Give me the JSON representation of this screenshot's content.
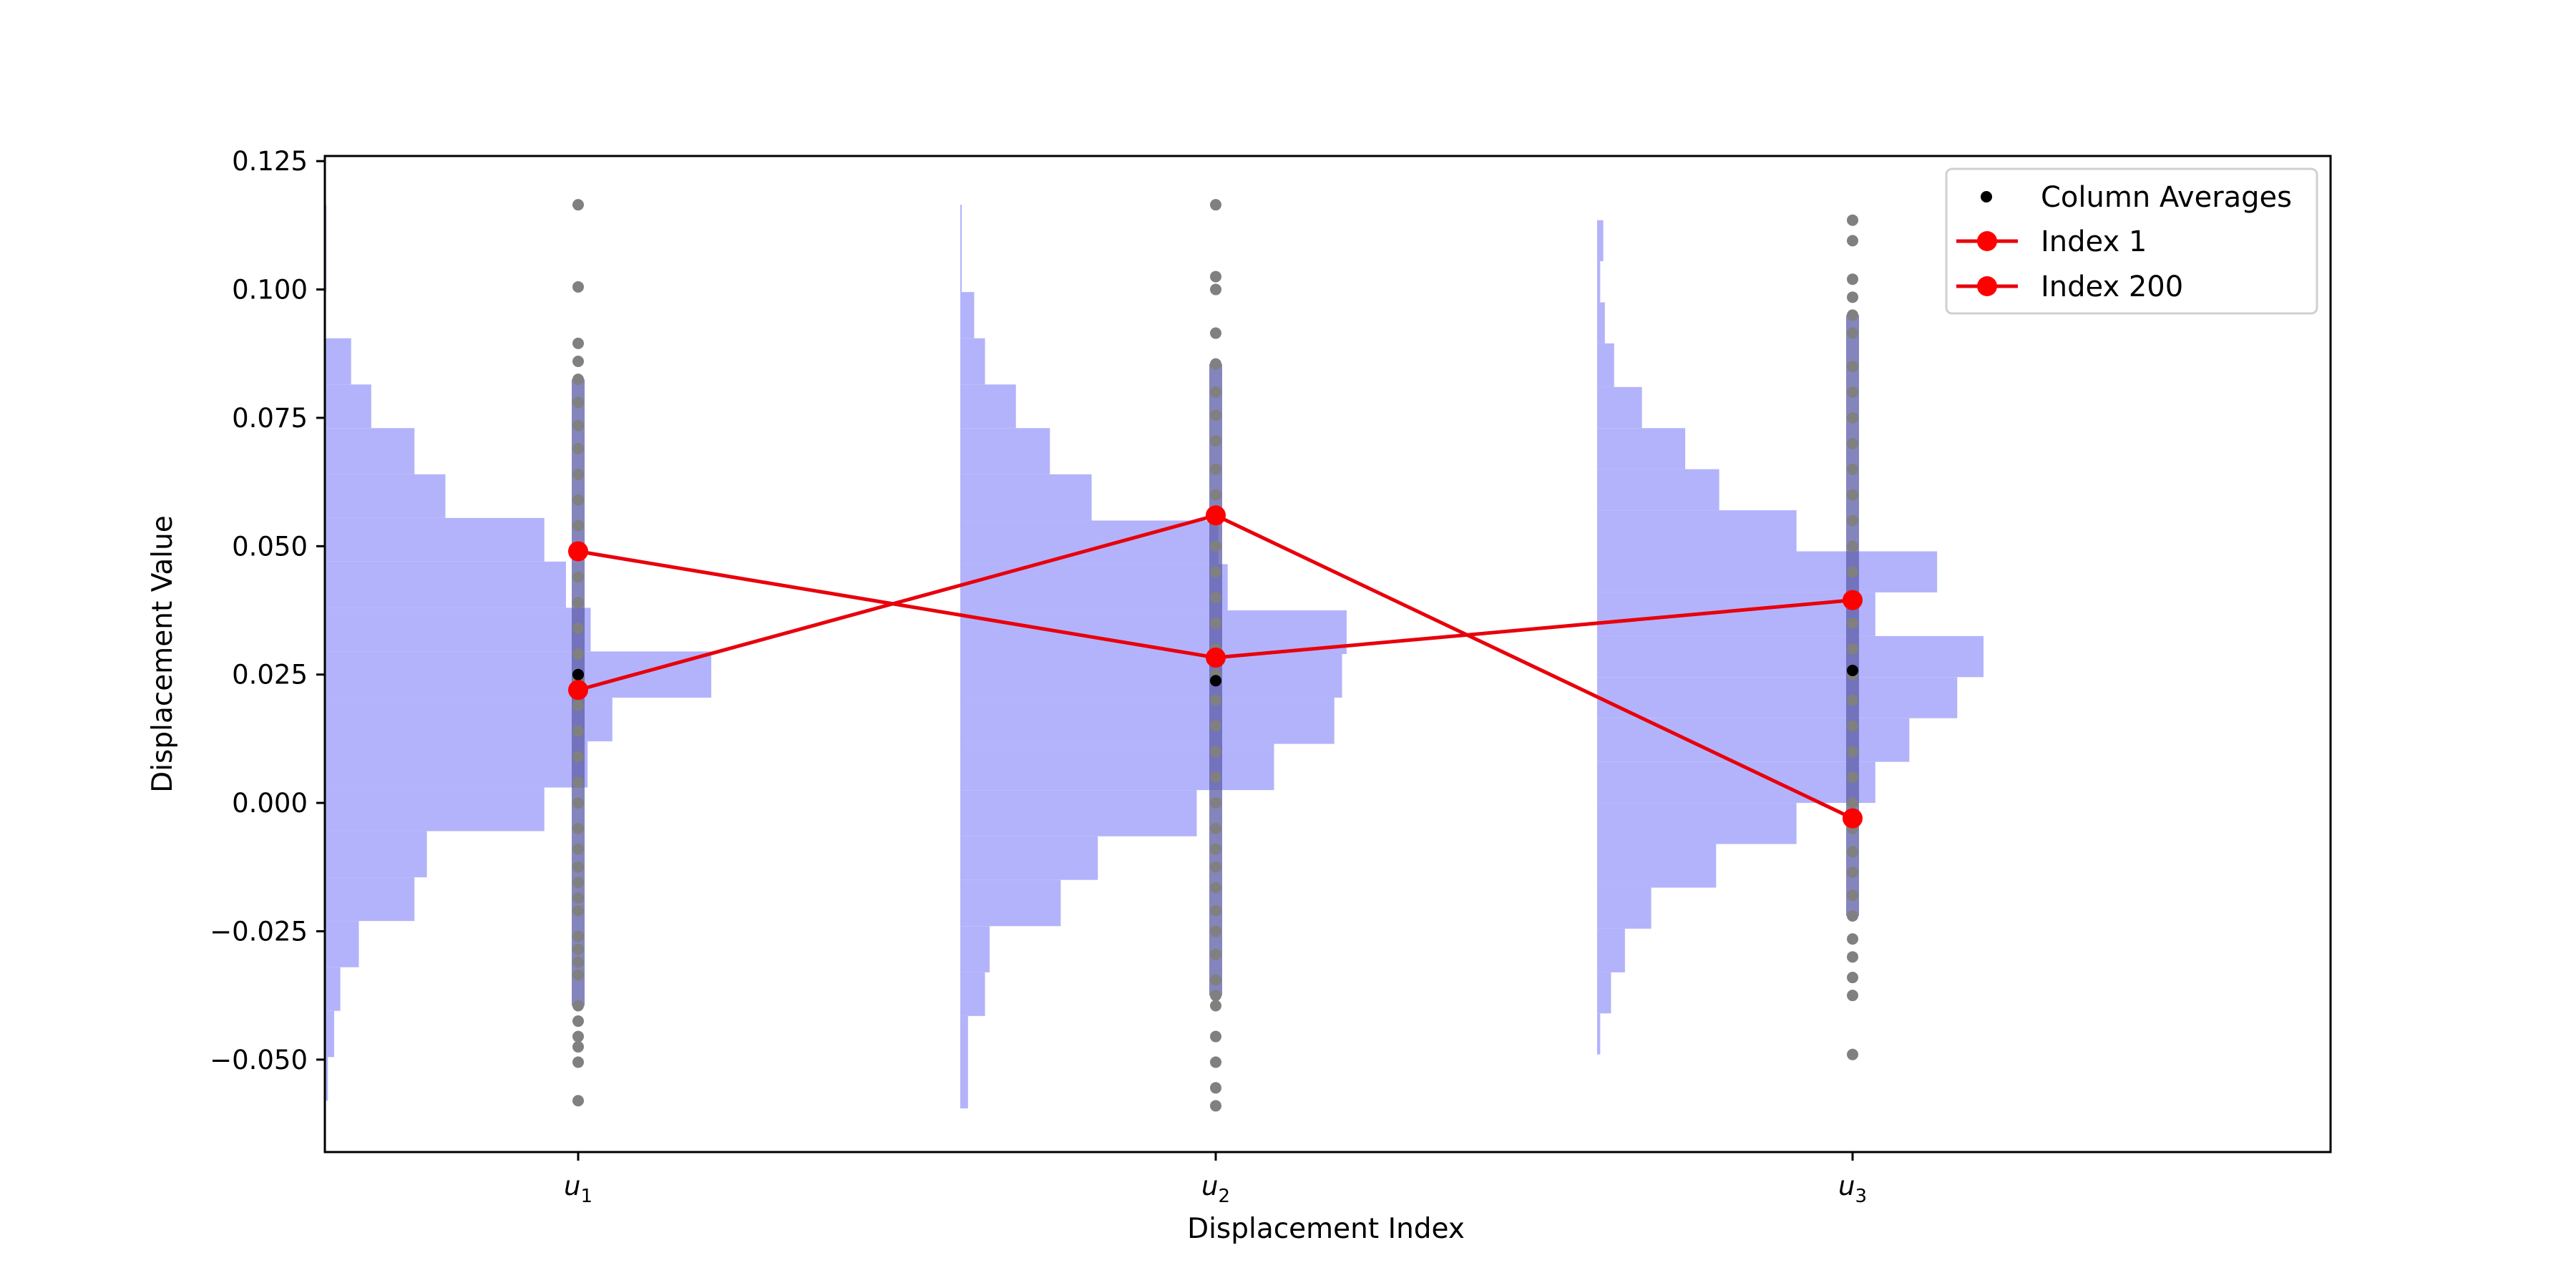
{
  "chart_data": {
    "type": "scatter",
    "title": "",
    "xlabel": "Displacement Index",
    "ylabel": "Displacement Value",
    "categories": [
      "u1",
      "u2",
      "u3"
    ],
    "category_labels": [
      {
        "base": "u",
        "sub": "1"
      },
      {
        "base": "u",
        "sub": "2"
      },
      {
        "base": "u",
        "sub": "3"
      }
    ],
    "ylim": [
      -0.068,
      0.126
    ],
    "yticks": [
      -0.05,
      -0.025,
      0.0,
      0.025,
      0.05,
      0.075,
      0.1,
      0.125
    ],
    "ytick_labels": [
      "−0.050",
      "−0.025",
      "0.000",
      "0.025",
      "0.050",
      "0.075",
      "0.100",
      "0.125"
    ],
    "grid": false,
    "legend_placement": "top-right",
    "colors": {
      "histogram": "#b3b3fb",
      "samples": "#808080",
      "column_average": "#000000",
      "index_lines": "#e8000b",
      "index_markers": "#ff0000",
      "overlap_band": "#5c5ca8"
    },
    "histograms": [
      {
        "category": "u1",
        "bins": [
          {
            "lo": -0.058,
            "hi": -0.0495,
            "count": 2
          },
          {
            "lo": -0.0495,
            "hi": -0.0405,
            "count": 6
          },
          {
            "lo": -0.0405,
            "hi": -0.032,
            "count": 10
          },
          {
            "lo": -0.032,
            "hi": -0.023,
            "count": 22
          },
          {
            "lo": -0.023,
            "hi": -0.0145,
            "count": 58
          },
          {
            "lo": -0.0145,
            "hi": -0.0055,
            "count": 66
          },
          {
            "lo": -0.0055,
            "hi": 0.003,
            "count": 142
          },
          {
            "lo": 0.003,
            "hi": 0.012,
            "count": 170
          },
          {
            "lo": 0.012,
            "hi": 0.0205,
            "count": 186
          },
          {
            "lo": 0.0205,
            "hi": 0.0295,
            "count": 250
          },
          {
            "lo": 0.0295,
            "hi": 0.038,
            "count": 172
          },
          {
            "lo": 0.038,
            "hi": 0.047,
            "count": 156
          },
          {
            "lo": 0.047,
            "hi": 0.0555,
            "count": 142
          },
          {
            "lo": 0.0555,
            "hi": 0.064,
            "count": 78
          },
          {
            "lo": 0.064,
            "hi": 0.073,
            "count": 58
          },
          {
            "lo": 0.073,
            "hi": 0.0815,
            "count": 30
          },
          {
            "lo": 0.0815,
            "hi": 0.0905,
            "count": 17
          },
          {
            "lo": 0.0905,
            "hi": 0.0995,
            "count": 0
          },
          {
            "lo": 0.0995,
            "hi": 0.1165,
            "count": 1
          }
        ]
      },
      {
        "category": "u2",
        "bins": [
          {
            "lo": -0.0595,
            "hi": -0.0415,
            "count": 5
          },
          {
            "lo": -0.0415,
            "hi": -0.033,
            "count": 16
          },
          {
            "lo": -0.033,
            "hi": -0.024,
            "count": 19
          },
          {
            "lo": -0.024,
            "hi": -0.015,
            "count": 65
          },
          {
            "lo": -0.015,
            "hi": -0.0065,
            "count": 89
          },
          {
            "lo": -0.0065,
            "hi": 0.0025,
            "count": 153
          },
          {
            "lo": 0.0025,
            "hi": 0.0115,
            "count": 203
          },
          {
            "lo": 0.0115,
            "hi": 0.0205,
            "count": 242
          },
          {
            "lo": 0.0205,
            "hi": 0.029,
            "count": 247
          },
          {
            "lo": 0.029,
            "hi": 0.0375,
            "count": 250
          },
          {
            "lo": 0.0375,
            "hi": 0.0465,
            "count": 173
          },
          {
            "lo": 0.0465,
            "hi": 0.055,
            "count": 167
          },
          {
            "lo": 0.055,
            "hi": 0.064,
            "count": 85
          },
          {
            "lo": 0.064,
            "hi": 0.073,
            "count": 58
          },
          {
            "lo": 0.073,
            "hi": 0.0815,
            "count": 36
          },
          {
            "lo": 0.0815,
            "hi": 0.0905,
            "count": 16
          },
          {
            "lo": 0.0905,
            "hi": 0.0995,
            "count": 9
          },
          {
            "lo": 0.0995,
            "hi": 0.1165,
            "count": 1
          }
        ]
      },
      {
        "category": "u3",
        "bins": [
          {
            "lo": -0.049,
            "hi": -0.041,
            "count": 2
          },
          {
            "lo": -0.041,
            "hi": -0.033,
            "count": 9
          },
          {
            "lo": -0.033,
            "hi": -0.0245,
            "count": 18
          },
          {
            "lo": -0.0245,
            "hi": -0.0165,
            "count": 35
          },
          {
            "lo": -0.0165,
            "hi": -0.008,
            "count": 77
          },
          {
            "lo": -0.008,
            "hi": 0.0,
            "count": 129
          },
          {
            "lo": 0.0,
            "hi": 0.008,
            "count": 180
          },
          {
            "lo": 0.008,
            "hi": 0.0165,
            "count": 202
          },
          {
            "lo": 0.0165,
            "hi": 0.0245,
            "count": 233
          },
          {
            "lo": 0.0245,
            "hi": 0.0325,
            "count": 250
          },
          {
            "lo": 0.0325,
            "hi": 0.041,
            "count": 180
          },
          {
            "lo": 0.041,
            "hi": 0.049,
            "count": 220
          },
          {
            "lo": 0.049,
            "hi": 0.057,
            "count": 129
          },
          {
            "lo": 0.057,
            "hi": 0.065,
            "count": 79
          },
          {
            "lo": 0.065,
            "hi": 0.073,
            "count": 57
          },
          {
            "lo": 0.073,
            "hi": 0.081,
            "count": 29
          },
          {
            "lo": 0.081,
            "hi": 0.0895,
            "count": 11
          },
          {
            "lo": 0.0895,
            "hi": 0.0975,
            "count": 5
          },
          {
            "lo": 0.0975,
            "hi": 0.1055,
            "count": 2
          },
          {
            "lo": 0.1055,
            "hi": 0.1135,
            "count": 4
          }
        ]
      }
    ],
    "samples": [
      {
        "category": "u1",
        "values": [
          -0.058,
          -0.0505,
          -0.0475,
          -0.0455,
          -0.0425,
          -0.0395,
          -0.0335,
          -0.031,
          -0.0285,
          -0.026,
          -0.021,
          -0.0185,
          -0.0155,
          -0.0125,
          -0.009,
          -0.005,
          0.0,
          0.004,
          0.009,
          0.014,
          0.019,
          0.024,
          0.029,
          0.034,
          0.039,
          0.044,
          0.049,
          0.054,
          0.059,
          0.064,
          0.069,
          0.0735,
          0.078,
          0.0825,
          0.086,
          0.0895,
          0.1005,
          0.1165
        ]
      },
      {
        "category": "u2",
        "values": [
          -0.059,
          -0.0555,
          -0.0505,
          -0.0455,
          -0.0395,
          -0.0375,
          -0.0345,
          -0.0295,
          -0.025,
          -0.021,
          -0.0165,
          -0.0125,
          -0.009,
          -0.005,
          0.0,
          0.005,
          0.01,
          0.015,
          0.02,
          0.025,
          0.03,
          0.035,
          0.04,
          0.045,
          0.05,
          0.055,
          0.06,
          0.065,
          0.0705,
          0.0755,
          0.08,
          0.0855,
          0.0915,
          0.1,
          0.1025,
          0.1165
        ]
      },
      {
        "category": "u3",
        "values": [
          -0.049,
          -0.0375,
          -0.034,
          -0.03,
          -0.0265,
          -0.022,
          -0.018,
          -0.0135,
          -0.0095,
          -0.005,
          0.0,
          0.005,
          0.01,
          0.015,
          0.02,
          0.025,
          0.03,
          0.035,
          0.04,
          0.045,
          0.05,
          0.055,
          0.06,
          0.065,
          0.07,
          0.075,
          0.08,
          0.085,
          0.0915,
          0.095,
          0.0985,
          0.102,
          0.1095,
          0.1135
        ]
      }
    ],
    "series": [
      {
        "name": "Column Averages",
        "values": [
          0.025,
          0.0238,
          0.0258
        ]
      },
      {
        "name": "Index 1",
        "values": [
          0.049,
          0.0283,
          0.0395
        ]
      },
      {
        "name": "Index 200",
        "values": [
          0.022,
          0.056,
          -0.003
        ]
      }
    ]
  }
}
